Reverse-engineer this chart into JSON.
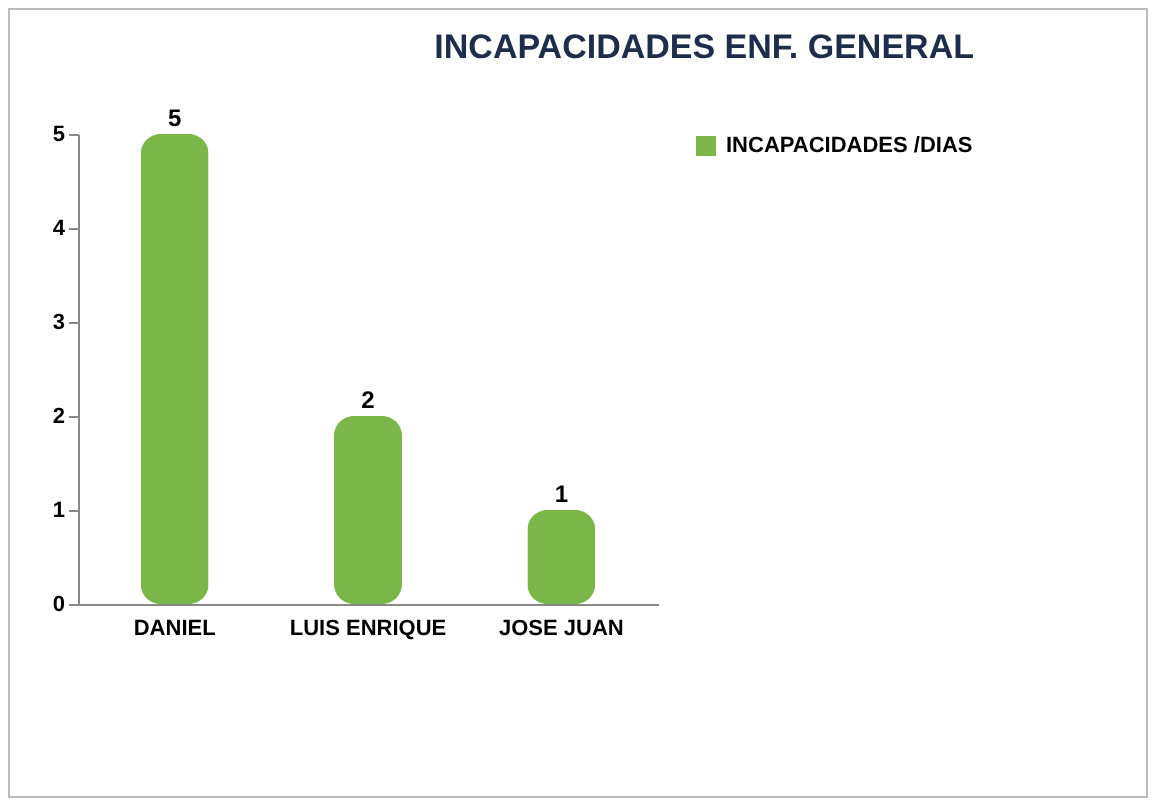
{
  "chart_data": {
    "type": "bar",
    "title": "INCAPACIDADES ENF. GENERAL",
    "categories": [
      "DANIEL",
      "LUIS ENRIQUE",
      "JOSE JUAN"
    ],
    "series": [
      {
        "name": "INCAPACIDADES /DIAS",
        "color": "#7ab648",
        "values": [
          5,
          2,
          1
        ]
      }
    ],
    "ylim": [
      0,
      5
    ],
    "yticks": [
      0,
      1,
      2,
      3,
      4,
      5
    ],
    "grid": false,
    "legend": "right",
    "data_labels": true
  }
}
